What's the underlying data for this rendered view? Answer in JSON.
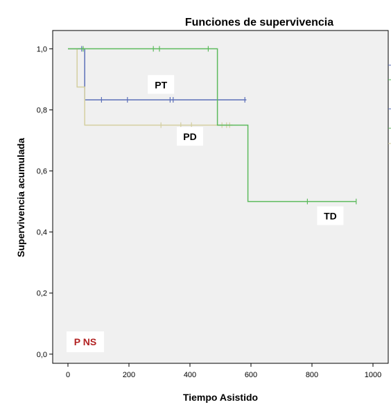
{
  "chart_data": {
    "type": "line",
    "step": true,
    "title": "Funciones de supervivencia",
    "xlabel": "Tiempo Asistido",
    "ylabel": "Supervivencia acumulada",
    "xlim": [
      -50,
      1050
    ],
    "ylim": [
      -0.03,
      1.06
    ],
    "xticks": [
      0,
      200,
      400,
      600,
      800,
      1000
    ],
    "yticks": [
      0.0,
      0.2,
      0.4,
      0.6,
      0.8,
      1.0
    ],
    "xtick_labels": [
      "0",
      "200",
      "400",
      "600",
      "800",
      "1000"
    ],
    "ytick_labels": [
      "0,0",
      "0,2",
      "0,4",
      "0,6",
      "0,8",
      "1,0"
    ],
    "grid": false,
    "plot_background": "#f0f0f0",
    "series": [
      {
        "name": "PT",
        "color": "#5b6fb8",
        "steps": [
          [
            0,
            1.0
          ],
          [
            55,
            1.0
          ],
          [
            55,
            0.833
          ],
          [
            585,
            0.833
          ]
        ],
        "censored": [
          [
            45,
            1.0
          ],
          [
            110,
            0.833
          ],
          [
            195,
            0.833
          ],
          [
            335,
            0.833
          ],
          [
            345,
            0.833
          ],
          [
            580,
            0.833
          ]
        ]
      },
      {
        "name": "PD",
        "color": "#d4cfa0",
        "steps": [
          [
            0,
            1.0
          ],
          [
            30,
            1.0
          ],
          [
            30,
            0.875
          ],
          [
            55,
            0.875
          ],
          [
            55,
            0.75
          ],
          [
            540,
            0.75
          ]
        ],
        "censored": [
          [
            305,
            0.75
          ],
          [
            370,
            0.75
          ],
          [
            405,
            0.75
          ],
          [
            505,
            0.75
          ],
          [
            520,
            0.75
          ],
          [
            530,
            0.75
          ]
        ]
      },
      {
        "name": "TD",
        "color": "#5cba5c",
        "steps": [
          [
            0,
            1.0
          ],
          [
            490,
            1.0
          ],
          [
            490,
            0.75
          ],
          [
            590,
            0.75
          ],
          [
            590,
            0.5
          ],
          [
            945,
            0.5
          ]
        ],
        "censored": [
          [
            50,
            1.0
          ],
          [
            280,
            1.0
          ],
          [
            300,
            1.0
          ],
          [
            460,
            1.0
          ],
          [
            785,
            0.5
          ],
          [
            945,
            0.5
          ]
        ]
      }
    ],
    "annotations": [
      {
        "text": "PT",
        "x": 305,
        "y": 0.88
      },
      {
        "text": "PD",
        "x": 400,
        "y": 0.71
      },
      {
        "text": "TD",
        "x": 860,
        "y": 0.45
      }
    ],
    "p_label": {
      "text": "P NS",
      "color": "#b22222"
    }
  }
}
